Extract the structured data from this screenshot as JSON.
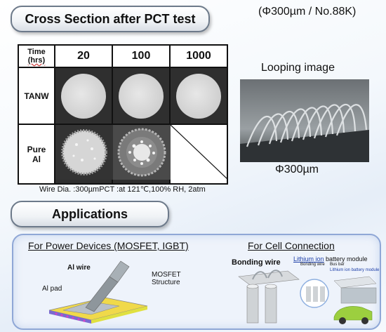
{
  "header": {
    "title": "Cross Section after PCT test",
    "spec": "(Φ300µm / No.88K)"
  },
  "table": {
    "time_label_line1": "Time",
    "time_label_line2": "(hrs)",
    "columns": [
      "20",
      "100",
      "1000"
    ],
    "rows": [
      "TANW",
      "Pure Al"
    ]
  },
  "looping": {
    "label": "Looping image",
    "diameter": "Φ300µm"
  },
  "wire_note": "Wire Dia. :300µmPCT :at 121℃,100% RH, 2atm",
  "applications": {
    "title": "Applications",
    "power_heading": "For Power Devices (MOSFET, IGBT)",
    "al_wire": "Al wire",
    "al_pad": "Al pad",
    "mosfet_line1": "MOSFET",
    "mosfet_line2": "Structure",
    "cell_heading": "For Cell Connection",
    "bonding_wire": "Bonding wire",
    "battery_module_prefix": "Lithium ion",
    "battery_module_suffix": " battery module",
    "small_bonding": "Bonding wire",
    "small_busbar": "Bus bar",
    "small_module": "Lithium ion battery module"
  }
}
